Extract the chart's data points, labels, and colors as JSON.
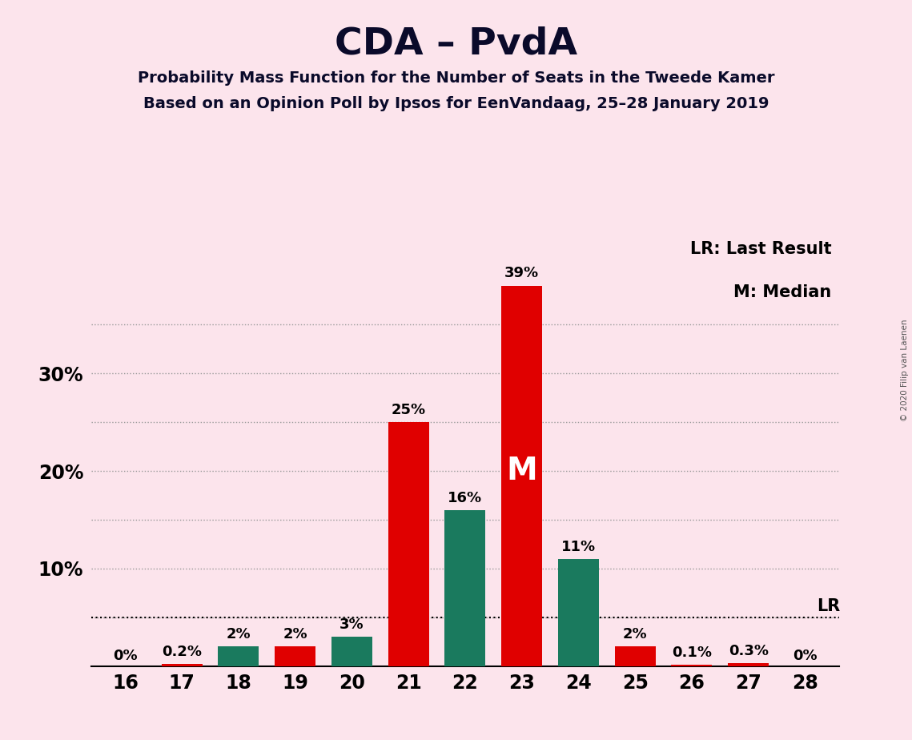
{
  "title": "CDA – PvdA",
  "subtitle1": "Probability Mass Function for the Number of Seats in the Tweede Kamer",
  "subtitle2": "Based on an Opinion Poll by Ipsos for EenVandaag, 25–28 January 2019",
  "copyright": "© 2020 Filip van Laenen",
  "legend_lr": "LR: Last Result",
  "legend_m": "M: Median",
  "seats": [
    16,
    17,
    18,
    19,
    20,
    21,
    22,
    23,
    24,
    25,
    26,
    27,
    28
  ],
  "green_values": [
    0.0,
    0.0,
    2.0,
    0.0,
    3.0,
    0.0,
    16.0,
    0.0,
    11.0,
    0.0,
    0.0,
    0.0,
    0.0
  ],
  "red_values": [
    0.0,
    0.2,
    0.0,
    2.0,
    0.0,
    25.0,
    0.0,
    39.0,
    0.0,
    2.0,
    0.1,
    0.3,
    0.0
  ],
  "green_labels": [
    "",
    "",
    "2%",
    "",
    "3%",
    "",
    "16%",
    "",
    "11%",
    "",
    "",
    "",
    ""
  ],
  "red_labels": [
    "0%",
    "0.2%",
    "",
    "2%",
    "",
    "25%",
    "",
    "39%",
    "",
    "2%",
    "0.1%",
    "0.3%",
    "0%"
  ],
  "median_seat": 23,
  "lr_value": 5.0,
  "background_color": "#fce4ec",
  "green_color": "#1a7a5e",
  "red_color": "#e00000",
  "yticks": [
    0,
    10,
    20,
    30
  ],
  "ytick_labels": [
    "",
    "10%",
    "20%",
    "30%"
  ],
  "ylim": [
    0,
    44
  ],
  "grid_values": [
    5,
    10,
    15,
    20,
    25,
    30,
    35
  ]
}
